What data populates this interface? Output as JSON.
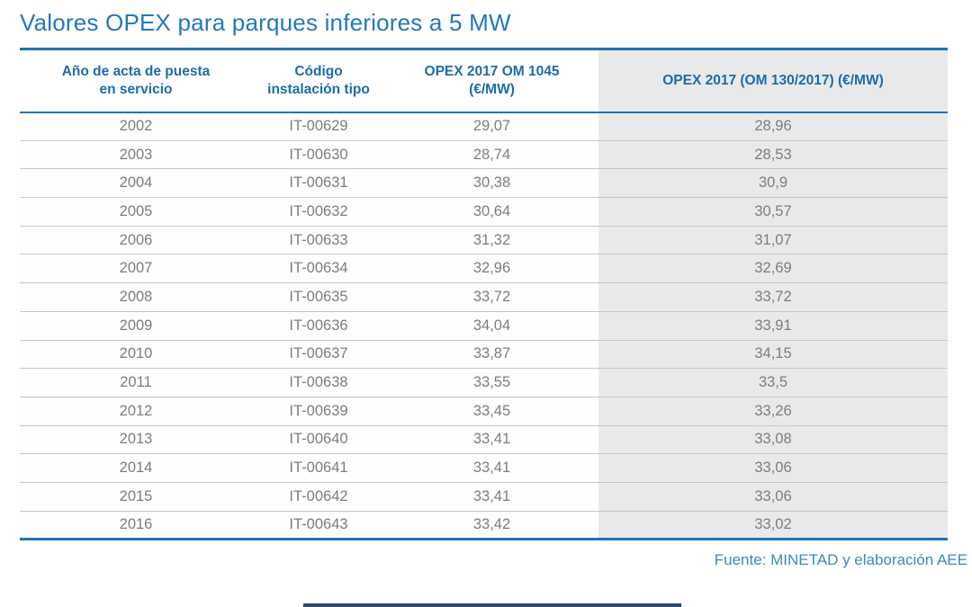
{
  "title": "Valores OPEX para parques inferiores a 5 MW",
  "source": "Fuente: MINETAD y elaboración AEE",
  "colors": {
    "accent_blue": "#2272B5",
    "title_blue": "#2478BE",
    "header_text_blue": "#1E6BAC",
    "highlight_column_bg": "#E9E9E9",
    "body_text_gray": "#7D7D7D",
    "row_separator_gray": "#C6C6C6",
    "footer_bar_navy": "#2C4A68"
  },
  "header": {
    "cols": [
      "Año de acta de puesta\nen servicio",
      "Código\ninstalación tipo",
      "OPEX 2017 OM 1045\n(€/MW)",
      "OPEX 2017 (OM 130/2017) (€/MW)"
    ]
  },
  "chart_data": {
    "type": "table",
    "title": "Valores OPEX para parques inferiores a 5 MW",
    "columns": [
      "Año de acta de puesta en servicio",
      "Código instalación tipo",
      "OPEX 2017 OM 1045 (€/MW)",
      "OPEX 2017 (OM 130/2017) (€/MW)"
    ],
    "rows": [
      [
        "2002",
        "IT-00629",
        "29,07",
        "28,96"
      ],
      [
        "2003",
        "IT-00630",
        "28,74",
        "28,53"
      ],
      [
        "2004",
        "IT-00631",
        "30,38",
        "30,9"
      ],
      [
        "2005",
        "IT-00632",
        "30,64",
        "30,57"
      ],
      [
        "2006",
        "IT-00633",
        "31,32",
        "31,07"
      ],
      [
        "2007",
        "IT-00634",
        "32,96",
        "32,69"
      ],
      [
        "2008",
        "IT-00635",
        "33,72",
        "33,72"
      ],
      [
        "2009",
        "IT-00636",
        "34,04",
        "33,91"
      ],
      [
        "2010",
        "IT-00637",
        "33,87",
        "34,15"
      ],
      [
        "2011",
        "IT-00638",
        "33,55",
        "33,5"
      ],
      [
        "2012",
        "IT-00639",
        "33,45",
        "33,26"
      ],
      [
        "2013",
        "IT-00640",
        "33,41",
        "33,08"
      ],
      [
        "2014",
        "IT-00641",
        "33,41",
        "33,06"
      ],
      [
        "2015",
        "IT-00642",
        "33,41",
        "33,06"
      ],
      [
        "2016",
        "IT-00643",
        "33,42",
        "33,02"
      ]
    ],
    "notes": "Column 4 (OPEX 2017 OM 130/2017) is shaded gray; decimal comma formatting; source MINETAD y elaboración AEE"
  }
}
